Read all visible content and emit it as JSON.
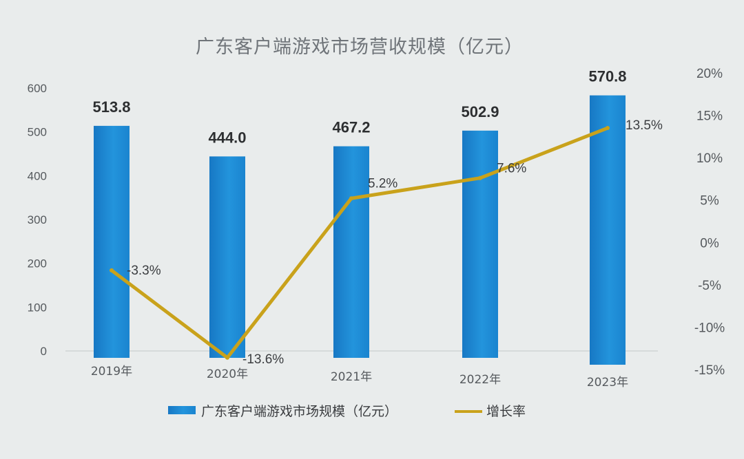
{
  "chart_data": {
    "type": "bar",
    "title": "广东客户端游戏市场营收规模（亿元）",
    "categories": [
      "2019年",
      "2020年",
      "2021年",
      "2022年",
      "2023年"
    ],
    "series": [
      {
        "name": "广东客户端游戏市场规模（亿元）",
        "type": "bar",
        "axis": "left",
        "values": [
          513.8,
          444.0,
          467.2,
          502.9,
          570.8
        ],
        "labels": [
          "513.8",
          "444.0",
          "467.2",
          "502.9",
          "570.8"
        ],
        "color": "#1a87d2"
      },
      {
        "name": "增长率",
        "type": "line",
        "axis": "right",
        "values": [
          -3.3,
          -13.6,
          5.2,
          7.6,
          13.5
        ],
        "labels": [
          "-3.3%",
          "-13.6%",
          "5.2%",
          "7.6%",
          "13.5%"
        ],
        "color": "#c9a21b"
      }
    ],
    "y_left": {
      "ylim": [
        0,
        600
      ],
      "ticks": [
        "0",
        "100",
        "200",
        "300",
        "400",
        "500",
        "600"
      ]
    },
    "y_right": {
      "ylim": [
        -15,
        20
      ],
      "ticks": [
        "-15%",
        "-10%",
        "-5%",
        "0%",
        "5%",
        "10%",
        "15%",
        "20%"
      ]
    },
    "grid": false,
    "legend_position": "bottom"
  }
}
